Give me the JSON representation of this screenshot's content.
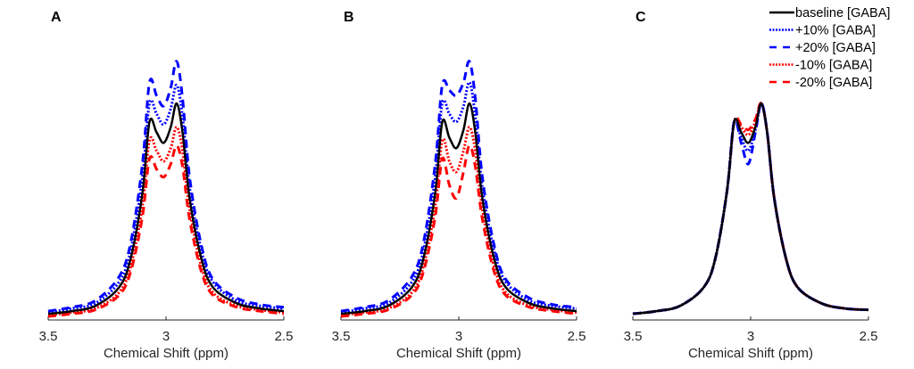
{
  "chart_data": [
    {
      "type": "line",
      "panel_label": "A",
      "xlabel": "Chemical Shift (ppm)",
      "xlim": [
        3.5,
        2.5
      ],
      "x_reversed": true,
      "xticks": [
        "3.5",
        "3",
        "2.5"
      ],
      "y_axis_shown": false,
      "grid": false,
      "x": [
        3.5,
        3.4,
        3.3,
        3.2,
        3.15,
        3.1,
        3.07,
        3.04,
        3.01,
        2.98,
        2.955,
        2.93,
        2.9,
        2.85,
        2.8,
        2.7,
        2.6,
        2.5
      ],
      "series": [
        {
          "name": "baseline [GABA]",
          "color": "#000000",
          "style": "solid",
          "values": [
            0.01,
            0.02,
            0.04,
            0.11,
            0.22,
            0.47,
            0.74,
            0.7,
            0.66,
            0.72,
            0.81,
            0.7,
            0.45,
            0.22,
            0.11,
            0.05,
            0.03,
            0.02
          ]
        },
        {
          "name": "+10% [GABA]",
          "color": "#0000ff",
          "style": "dotted",
          "values": [
            0.015,
            0.03,
            0.05,
            0.13,
            0.25,
            0.53,
            0.81,
            0.77,
            0.73,
            0.79,
            0.88,
            0.76,
            0.49,
            0.25,
            0.13,
            0.06,
            0.04,
            0.03
          ]
        },
        {
          "name": "+20% [GABA]",
          "color": "#0000ff",
          "style": "dashed",
          "values": [
            0.02,
            0.035,
            0.06,
            0.15,
            0.28,
            0.58,
            0.89,
            0.84,
            0.8,
            0.87,
            0.97,
            0.83,
            0.53,
            0.27,
            0.14,
            0.07,
            0.045,
            0.035
          ]
        },
        {
          "name": "-10% [GABA]",
          "color": "#ff0000",
          "style": "dotted",
          "values": [
            0.005,
            0.015,
            0.03,
            0.09,
            0.19,
            0.42,
            0.67,
            0.63,
            0.59,
            0.64,
            0.72,
            0.63,
            0.41,
            0.19,
            0.09,
            0.04,
            0.025,
            0.015
          ]
        },
        {
          "name": "-20% [GABA]",
          "color": "#ff0000",
          "style": "dashed",
          "values": [
            0.0,
            0.01,
            0.025,
            0.08,
            0.17,
            0.38,
            0.6,
            0.56,
            0.53,
            0.58,
            0.65,
            0.57,
            0.37,
            0.17,
            0.08,
            0.035,
            0.02,
            0.01
          ]
        }
      ]
    },
    {
      "type": "line",
      "panel_label": "B",
      "xlabel": "Chemical Shift (ppm)",
      "xlim": [
        3.5,
        2.5
      ],
      "x_reversed": true,
      "xticks": [
        "3.5",
        "3",
        "2.5"
      ],
      "y_axis_shown": false,
      "grid": false,
      "x": [
        3.5,
        3.4,
        3.3,
        3.2,
        3.15,
        3.1,
        3.07,
        3.04,
        3.01,
        2.98,
        2.955,
        2.93,
        2.9,
        2.85,
        2.8,
        2.7,
        2.6,
        2.5
      ],
      "series": [
        {
          "name": "baseline [GABA]",
          "color": "#000000",
          "style": "solid",
          "values": [
            0.01,
            0.02,
            0.04,
            0.11,
            0.22,
            0.47,
            0.74,
            0.68,
            0.64,
            0.71,
            0.81,
            0.7,
            0.45,
            0.22,
            0.11,
            0.05,
            0.03,
            0.02
          ]
        },
        {
          "name": "+10% [GABA]",
          "color": "#0000ff",
          "style": "dotted",
          "values": [
            0.015,
            0.03,
            0.05,
            0.13,
            0.25,
            0.53,
            0.81,
            0.77,
            0.74,
            0.8,
            0.89,
            0.76,
            0.49,
            0.25,
            0.13,
            0.06,
            0.04,
            0.03
          ]
        },
        {
          "name": "+20% [GABA]",
          "color": "#0000ff",
          "style": "dashed",
          "values": [
            0.02,
            0.035,
            0.06,
            0.15,
            0.28,
            0.58,
            0.88,
            0.86,
            0.84,
            0.89,
            0.97,
            0.83,
            0.53,
            0.27,
            0.14,
            0.07,
            0.045,
            0.035
          ]
        },
        {
          "name": "-10% [GABA]",
          "color": "#ff0000",
          "style": "dotted",
          "values": [
            0.005,
            0.015,
            0.03,
            0.09,
            0.19,
            0.42,
            0.67,
            0.59,
            0.55,
            0.63,
            0.72,
            0.63,
            0.41,
            0.19,
            0.09,
            0.04,
            0.025,
            0.015
          ]
        },
        {
          "name": "-20% [GABA]",
          "color": "#ff0000",
          "style": "dashed",
          "values": [
            0.0,
            0.01,
            0.025,
            0.08,
            0.17,
            0.38,
            0.6,
            0.5,
            0.45,
            0.55,
            0.65,
            0.57,
            0.37,
            0.17,
            0.08,
            0.035,
            0.02,
            0.01
          ]
        }
      ]
    },
    {
      "type": "line",
      "panel_label": "C",
      "xlabel": "Chemical Shift (ppm)",
      "xlim": [
        3.5,
        2.5
      ],
      "x_reversed": true,
      "xticks": [
        "3.5",
        "3",
        "2.5"
      ],
      "y_axis_shown": false,
      "grid": false,
      "legend_position": "top-right",
      "x": [
        3.5,
        3.4,
        3.3,
        3.2,
        3.15,
        3.1,
        3.07,
        3.04,
        3.01,
        2.98,
        2.955,
        2.93,
        2.9,
        2.85,
        2.8,
        2.7,
        2.6,
        2.5
      ],
      "series": [
        {
          "name": "baseline [GABA]",
          "color": "#000000",
          "style": "solid",
          "values": [
            0.01,
            0.02,
            0.04,
            0.11,
            0.22,
            0.48,
            0.74,
            0.7,
            0.66,
            0.72,
            0.81,
            0.7,
            0.45,
            0.22,
            0.11,
            0.05,
            0.03,
            0.025
          ]
        },
        {
          "name": "+10% [GABA]",
          "color": "#0000ff",
          "style": "dotted",
          "values": [
            0.01,
            0.02,
            0.04,
            0.11,
            0.22,
            0.48,
            0.74,
            0.68,
            0.63,
            0.71,
            0.81,
            0.7,
            0.45,
            0.22,
            0.11,
            0.05,
            0.03,
            0.025
          ]
        },
        {
          "name": "+20% [GABA]",
          "color": "#0000ff",
          "style": "dashed",
          "values": [
            0.01,
            0.02,
            0.04,
            0.11,
            0.22,
            0.48,
            0.74,
            0.66,
            0.58,
            0.7,
            0.81,
            0.7,
            0.45,
            0.22,
            0.11,
            0.05,
            0.03,
            0.025
          ]
        },
        {
          "name": "-10% [GABA]",
          "color": "#ff0000",
          "style": "dotted",
          "values": [
            0.01,
            0.02,
            0.04,
            0.11,
            0.22,
            0.48,
            0.74,
            0.72,
            0.69,
            0.74,
            0.81,
            0.7,
            0.45,
            0.22,
            0.11,
            0.05,
            0.03,
            0.025
          ]
        },
        {
          "name": "-20% [GABA]",
          "color": "#ff0000",
          "style": "dashed",
          "values": [
            0.01,
            0.02,
            0.04,
            0.11,
            0.22,
            0.48,
            0.74,
            0.73,
            0.71,
            0.75,
            0.81,
            0.7,
            0.45,
            0.22,
            0.11,
            0.05,
            0.03,
            0.025
          ]
        }
      ]
    }
  ],
  "legend": [
    "baseline [GABA]",
    "+10% [GABA]",
    "+20% [GABA]",
    "-10% [GABA]",
    "-20% [GABA]"
  ]
}
